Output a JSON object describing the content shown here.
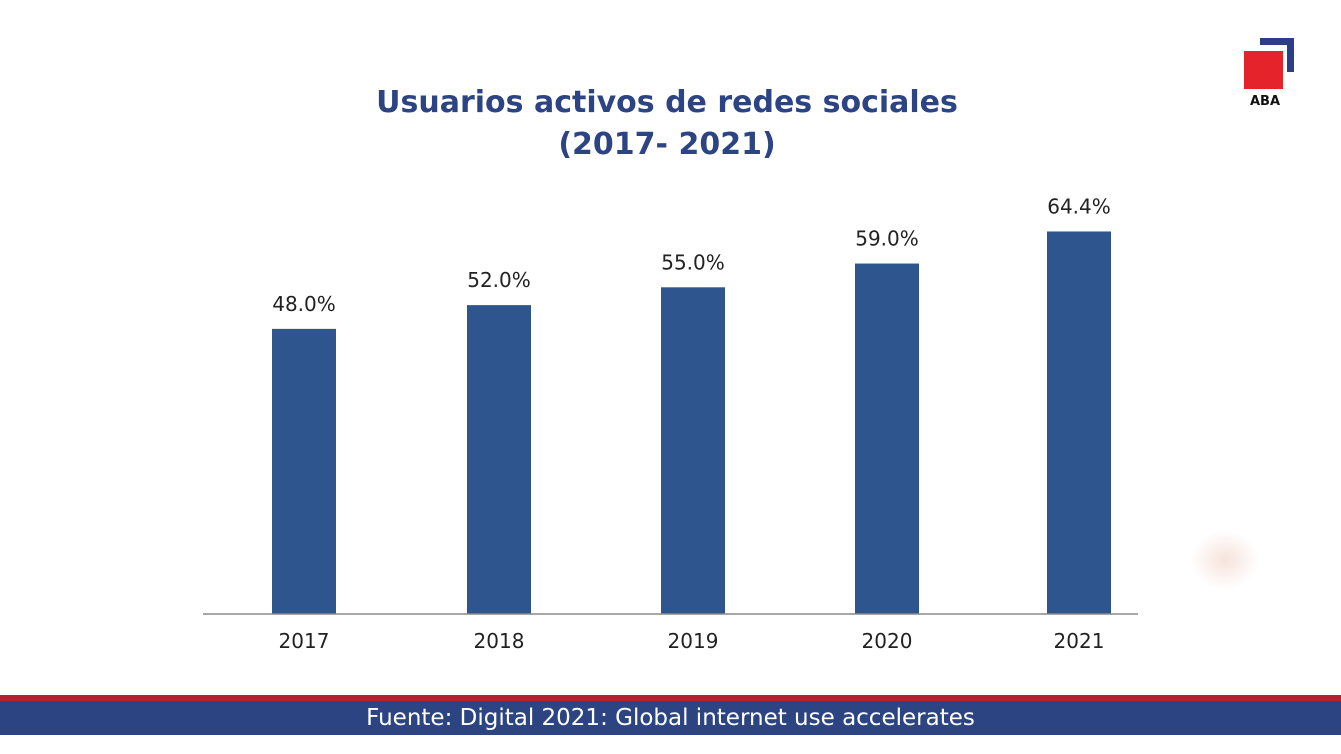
{
  "chart_data": {
    "type": "bar",
    "title": [
      "Usuarios activos de redes sociales",
      "(2017- 2021)"
    ],
    "categories": [
      "2017",
      "2018",
      "2019",
      "2020",
      "2021"
    ],
    "values": [
      48.0,
      52.0,
      55.0,
      59.0,
      64.4
    ],
    "data_labels": [
      "48.0%",
      "52.0%",
      "55.0%",
      "59.0%",
      "64.4%"
    ],
    "ylim": [
      0,
      100
    ],
    "grid": false,
    "bar_color": "#2f558f"
  },
  "logo": {
    "text": "ABA",
    "colors": {
      "red": "#e4232a",
      "blue": "#2c3f86"
    }
  },
  "footer": {
    "source": "Fuente: Digital 2021: Global internet use accelerates"
  }
}
